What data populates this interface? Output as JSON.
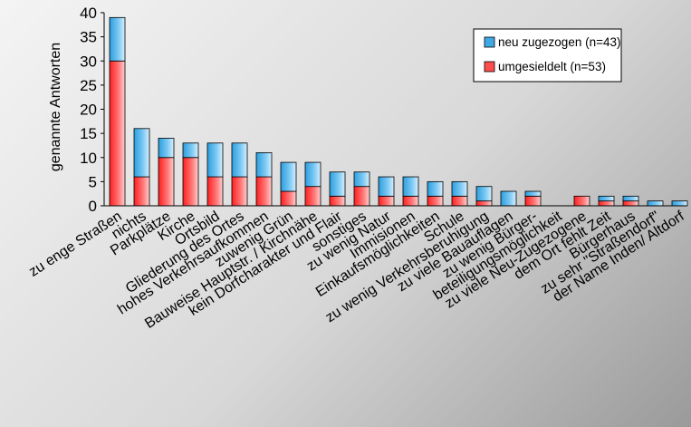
{
  "chart_data": {
    "type": "bar",
    "stacked": true,
    "ylabel": "genannte Antworten",
    "xlabel": "",
    "ylim": [
      0,
      40
    ],
    "ytick_step": 5,
    "grid": false,
    "legend_position": "top-right",
    "categories": [
      "zu enge Straßen",
      "nichts",
      "Parkplätze",
      "Kirche",
      "Ortsbild",
      "Gliederung des Ortes",
      "hohes Verkehrsaufkommen",
      "zuwenig Grün",
      "Bauweise Hauptstr. / Kirchnähe",
      "kein Dorfcharakter und Flair",
      "sonstiges",
      "zu wenig Natur",
      "Immisionen",
      "Einkaufsmöglichkeiten",
      "Schule",
      "zu wenig Verkehrsberuhigung",
      "zu viele Bauauflagen",
      "zu wenig Bürger-",
      "beteiligungsmöglichkeit",
      "zu viele Neu-Zugezogene",
      "dem Ort fehlt Zeit",
      "Bürgerhaus",
      "zu sehr \"Straßendorf\"",
      "der Name Inden/ Altdorf"
    ],
    "series": [
      {
        "name": "umgesieldelt (n=53)",
        "color": "#ff4d4d",
        "values": [
          30,
          6,
          10,
          10,
          6,
          6,
          6,
          3,
          4,
          2,
          4,
          2,
          2,
          2,
          2,
          1,
          0,
          2,
          0,
          2,
          1,
          1,
          0,
          0
        ]
      },
      {
        "name": "neu zugezogen (n=43)",
        "color": "#3fa9e6",
        "values": [
          9,
          10,
          4,
          3,
          7,
          7,
          5,
          6,
          5,
          5,
          3,
          4,
          4,
          3,
          3,
          3,
          3,
          1,
          0,
          0,
          1,
          1,
          1,
          1
        ]
      }
    ]
  },
  "legend": {
    "items": [
      {
        "label": "neu zugezogen (n=43)",
        "color": "#3fa9e6"
      },
      {
        "label": "umgesieldelt (n=53)",
        "color": "#ff4d4d"
      }
    ]
  }
}
